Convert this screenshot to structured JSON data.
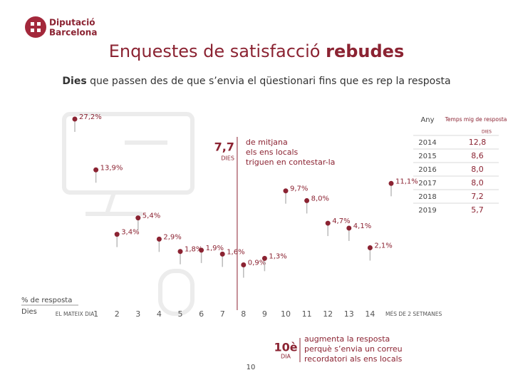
{
  "logo": [
    "Diputació",
    "Barcelona"
  ],
  "chart_data": {
    "type": "pins",
    "title": "Enquestes de satisfacció",
    "title_bold": "rebudes",
    "subtitle_bold": "Dies",
    "subtitle": "que passen des de que s’envia el qüestionari fins que es rep la resposta",
    "y_label": "% de resposta",
    "x_label": "Dies",
    "y_scale": "sqrt",
    "color": "#8b2332",
    "categories": [
      "EL MATEIX DIA",
      "1",
      "2",
      "3",
      "4",
      "5",
      "6",
      "7",
      "8",
      "9",
      "10",
      "11",
      "12",
      "13",
      "14",
      "MÉS DE 2 SETMANES"
    ],
    "values": [
      27.2,
      13.9,
      3.4,
      5.4,
      2.9,
      1.8,
      1.9,
      1.6,
      0.9,
      1.3,
      9.7,
      8.0,
      4.7,
      4.1,
      2.1,
      11.1
    ],
    "value_labels": [
      "27,2%",
      "13,9%",
      "3,4%",
      "5,4%",
      "2,9%",
      "1,8%",
      "1,9%",
      "1,6%",
      "0,9%",
      "1,3%",
      "9,7%",
      "8,0%",
      "4,7%",
      "4,1%",
      "2,1%",
      "11,1%"
    ],
    "average": {
      "value": 7.7,
      "label": "7,7",
      "unit": "DIES",
      "text": [
        "de mitjana",
        "els ens locals",
        "triguen en contestar-la"
      ]
    },
    "reminder": {
      "day": 10,
      "label": "10è",
      "unit": "DIA",
      "text": [
        "augmenta la resposta",
        "perquè s’envia un correu",
        "recordatori als ens locals"
      ]
    }
  },
  "table": {
    "header": [
      "Any",
      "Temps mig de resposta",
      "DIES"
    ],
    "rows": [
      [
        "2014",
        "12,8"
      ],
      [
        "2015",
        "8,6"
      ],
      [
        "2016",
        "8,0"
      ],
      [
        "2017",
        "8,0"
      ],
      [
        "2018",
        "7,2"
      ],
      [
        "2019",
        "5,7"
      ]
    ]
  },
  "page_number": "10"
}
